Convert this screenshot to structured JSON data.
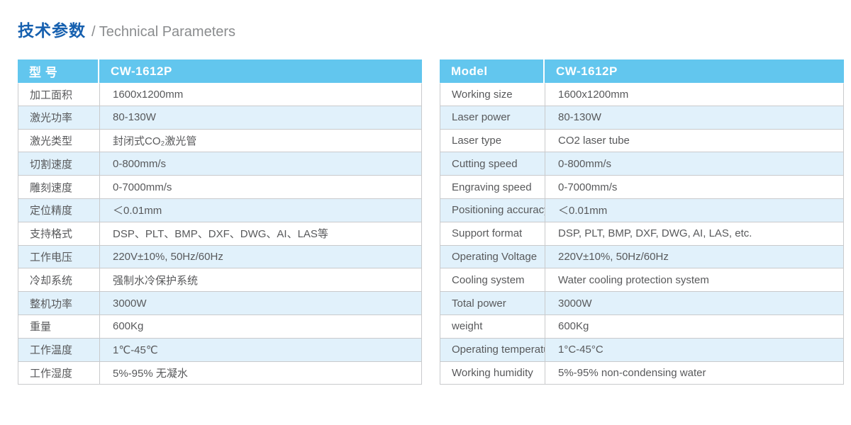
{
  "title": {
    "zh": "技术参数",
    "en": "/ Technical Parameters"
  },
  "colors": {
    "header_bg": "#62C6EE",
    "row_alt_bg": "#E1F1FB",
    "title_blue": "#1660AF",
    "title_gray": "#8A8C8E",
    "text_color": "#58595B",
    "border_color": "#C9CACC"
  },
  "table_zh": {
    "header": {
      "label": "型 号",
      "value": "CW-1612P"
    },
    "rows": [
      {
        "label": "加工面积",
        "value": "1600x1200mm"
      },
      {
        "label": "激光功率",
        "value": "80-130W"
      },
      {
        "label": "激光类型",
        "value": "封闭式CO₂激光管"
      },
      {
        "label": "切割速度",
        "value": "0-800mm/s"
      },
      {
        "label": "雕刻速度",
        "value": "0-7000mm/s"
      },
      {
        "label": "定位精度",
        "value": "＜0.01mm"
      },
      {
        "label": "支持格式",
        "value": "DSP、PLT、BMP、DXF、DWG、AI、LAS等"
      },
      {
        "label": "工作电压",
        "value": "220V±10%, 50Hz/60Hz"
      },
      {
        "label": "冷却系统",
        "value": "强制水冷保护系统"
      },
      {
        "label": "整机功率",
        "value": "3000W"
      },
      {
        "label": "重量",
        "value": "600Kg"
      },
      {
        "label": "工作温度",
        "value": "1℃-45℃"
      },
      {
        "label": "工作湿度",
        "value": "5%-95% 无凝水"
      }
    ]
  },
  "table_en": {
    "header": {
      "label": "Model",
      "value": "CW-1612P"
    },
    "rows": [
      {
        "label": "Working size",
        "value": "1600x1200mm"
      },
      {
        "label": "Laser power",
        "value": "80-130W"
      },
      {
        "label": "Laser type",
        "value": "CO2 laser tube"
      },
      {
        "label": "Cutting speed",
        "value": "0-800mm/s"
      },
      {
        "label": "Engraving speed",
        "value": "0-7000mm/s"
      },
      {
        "label": "Positioning accuracy",
        "value": "＜0.01mm"
      },
      {
        "label": "Support format",
        "value": "DSP, PLT, BMP, DXF, DWG, AI, LAS, etc."
      },
      {
        "label": "Operating Voltage",
        "value": "220V±10%, 50Hz/60Hz"
      },
      {
        "label": "Cooling system",
        "value": "Water cooling protection system"
      },
      {
        "label": "Total power",
        "value": "3000W"
      },
      {
        "label": "weight",
        "value": "600Kg"
      },
      {
        "label": "Operating temperature",
        "value": "1°C-45°C"
      },
      {
        "label": "Working humidity",
        "value": "5%-95% non-condensing water"
      }
    ]
  }
}
